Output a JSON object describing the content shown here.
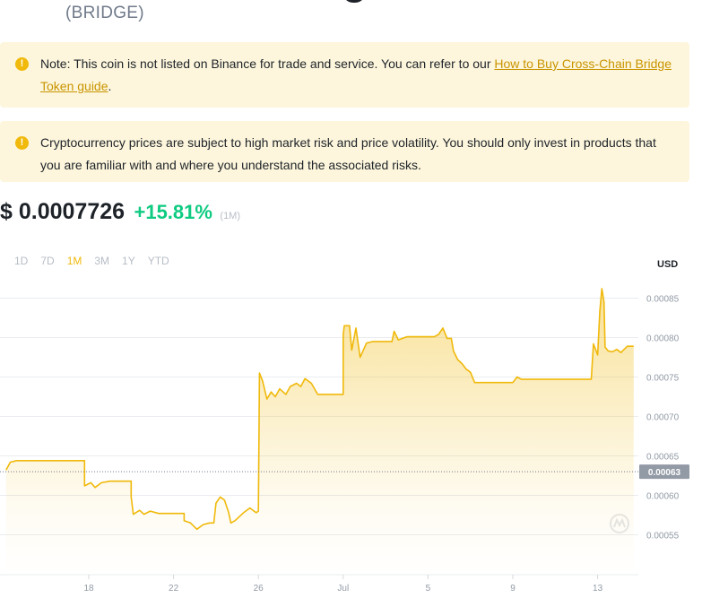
{
  "header": {
    "ticker": "(BRIDGE)"
  },
  "notices": {
    "listing": {
      "text": "Note: This coin is not listed on Binance for trade and service. You can refer to our ",
      "link": "How to Buy Cross-Chain Bridge Token guide",
      "suffix": "."
    },
    "risk": {
      "text": "Cryptocurrency prices are subject to high market risk and price volatility. You should only invest in products that you are familiar with and where you understand the associated risks."
    }
  },
  "price": {
    "value": "$ 0.0007726",
    "change": "+15.81%",
    "period": "(1M)"
  },
  "ranges": [
    {
      "label": "1D",
      "active": false
    },
    {
      "label": "7D",
      "active": false
    },
    {
      "label": "1M",
      "active": true
    },
    {
      "label": "3M",
      "active": false
    },
    {
      "label": "1Y",
      "active": false
    },
    {
      "label": "YTD",
      "active": false
    }
  ],
  "currency": "USD",
  "colors": {
    "accent": "#f0b90b",
    "up": "#0ecb81",
    "notice_bg": "#fdf6dc",
    "link": "#c99400"
  },
  "chart_data": {
    "type": "area",
    "y_ticks": [
      "0.00085",
      "0.00080",
      "0.00075",
      "0.00070",
      "0.00065",
      "0.00060",
      "0.00055"
    ],
    "ylim": [
      0.00051,
      0.000885
    ],
    "x_ticks": [
      {
        "label": "18",
        "day": 18
      },
      {
        "label": "22",
        "day": 22
      },
      {
        "label": "26",
        "day": 26
      },
      {
        "label": "Jul",
        "day": 30
      },
      {
        "label": "5",
        "day": 34
      },
      {
        "label": "9",
        "day": 38
      },
      {
        "label": "13",
        "day": 42
      }
    ],
    "current_label": "0.00063",
    "current_value": 0.00063,
    "series": [
      {
        "points": [
          [
            14.1,
            0.000632
          ],
          [
            14.3,
            0.000642
          ],
          [
            14.6,
            0.000644
          ],
          [
            17.8,
            0.000644
          ],
          [
            17.8,
            0.000612
          ],
          [
            18.1,
            0.000616
          ],
          [
            18.3,
            0.00061
          ],
          [
            18.6,
            0.000616
          ],
          [
            19.0,
            0.000618
          ],
          [
            20.0,
            0.000618
          ],
          [
            20.0,
            0.000598
          ],
          [
            20.1,
            0.000576
          ],
          [
            20.4,
            0.000581
          ],
          [
            20.6,
            0.000576
          ],
          [
            20.9,
            0.00058
          ],
          [
            21.3,
            0.000577
          ],
          [
            22.5,
            0.000577
          ],
          [
            22.5,
            0.000568
          ],
          [
            22.8,
            0.000565
          ],
          [
            23.1,
            0.000557
          ],
          [
            23.4,
            0.000563
          ],
          [
            23.7,
            0.000565
          ],
          [
            23.9,
            0.000565
          ],
          [
            24.0,
            0.00059
          ],
          [
            24.2,
            0.000598
          ],
          [
            24.4,
            0.000594
          ],
          [
            24.6,
            0.000578
          ],
          [
            24.7,
            0.000565
          ],
          [
            24.9,
            0.000568
          ],
          [
            25.3,
            0.000578
          ],
          [
            25.6,
            0.000584
          ],
          [
            25.9,
            0.000578
          ],
          [
            26.0,
            0.00058
          ],
          [
            26.05,
            0.000755
          ],
          [
            26.2,
            0.000745
          ],
          [
            26.4,
            0.000722
          ],
          [
            26.6,
            0.000731
          ],
          [
            26.8,
            0.000725
          ],
          [
            27.0,
            0.000735
          ],
          [
            27.3,
            0.000728
          ],
          [
            27.5,
            0.000738
          ],
          [
            27.8,
            0.000742
          ],
          [
            28.0,
            0.000738
          ],
          [
            28.2,
            0.000748
          ],
          [
            28.5,
            0.000742
          ],
          [
            28.8,
            0.000728
          ],
          [
            30.0,
            0.000728
          ],
          [
            30.0,
            0.000803
          ],
          [
            30.05,
            0.000815
          ],
          [
            30.3,
            0.000815
          ],
          [
            30.4,
            0.000784
          ],
          [
            30.6,
            0.000812
          ],
          [
            30.8,
            0.000775
          ],
          [
            31.1,
            0.000793
          ],
          [
            31.4,
            0.000795
          ],
          [
            32.3,
            0.000795
          ],
          [
            32.4,
            0.000808
          ],
          [
            32.6,
            0.000797
          ],
          [
            33.0,
            0.000801
          ],
          [
            34.3,
            0.000801
          ],
          [
            34.5,
            0.000804
          ],
          [
            34.7,
            0.000812
          ],
          [
            34.9,
            0.000799
          ],
          [
            35.1,
            0.000799
          ],
          [
            35.2,
            0.000783
          ],
          [
            35.4,
            0.000772
          ],
          [
            35.6,
            0.000767
          ],
          [
            35.8,
            0.00076
          ],
          [
            36.0,
            0.000756
          ],
          [
            36.2,
            0.000743
          ],
          [
            38.0,
            0.000743
          ],
          [
            38.2,
            0.00075
          ],
          [
            38.4,
            0.000747
          ],
          [
            40.3,
            0.000747
          ],
          [
            41.5,
            0.000747
          ],
          [
            41.7,
            0.000747
          ],
          [
            41.8,
            0.000792
          ],
          [
            42.0,
            0.000778
          ],
          [
            42.1,
            0.000833
          ],
          [
            42.2,
            0.000862
          ],
          [
            42.3,
            0.000845
          ],
          [
            42.35,
            0.000788
          ],
          [
            42.5,
            0.000783
          ],
          [
            42.7,
            0.000782
          ],
          [
            42.9,
            0.000785
          ],
          [
            43.1,
            0.000781
          ],
          [
            43.4,
            0.000789
          ],
          [
            43.7,
            0.000789
          ]
        ]
      }
    ]
  }
}
